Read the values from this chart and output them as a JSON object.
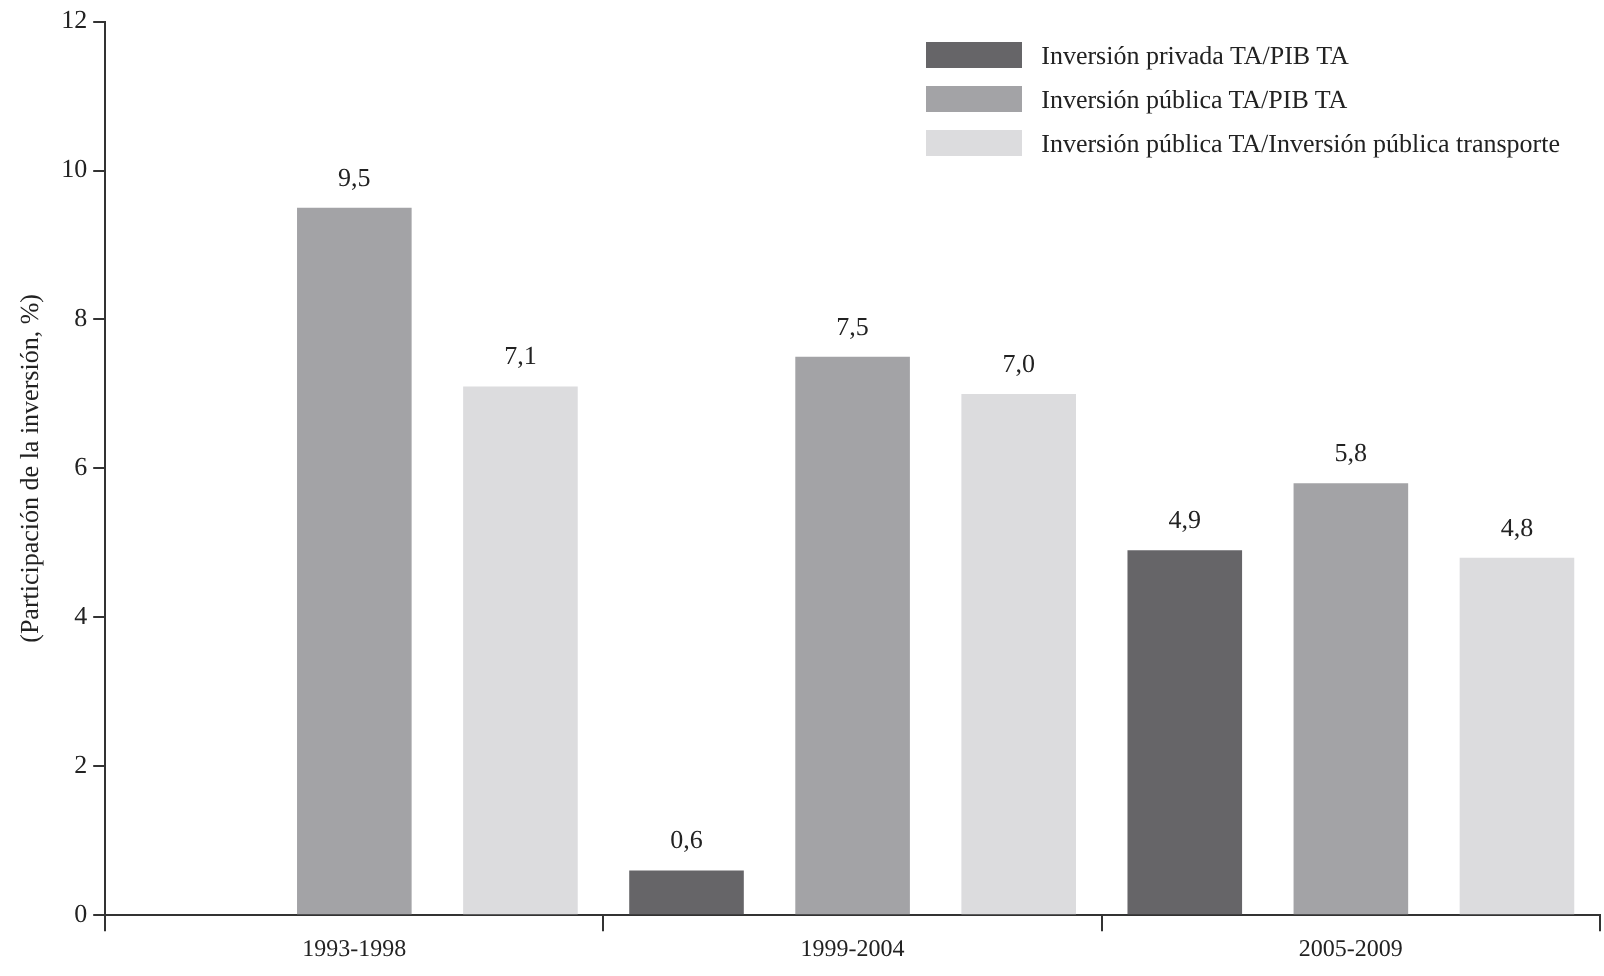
{
  "chart_data": {
    "type": "bar",
    "ylabel": "(Participación de la inversión, %)",
    "categories": [
      "1993-1998",
      "1999-2004",
      "2005-2009"
    ],
    "series": [
      {
        "name": "Inversión privada TA/PIB TA",
        "color": "#666568",
        "values": [
          null,
          0.6,
          4.9
        ],
        "value_labels": [
          null,
          "0,6",
          "4,9"
        ]
      },
      {
        "name": "Inversión pública TA/PIB TA",
        "color": "#a3a3a6",
        "values": [
          9.5,
          7.5,
          5.8
        ],
        "value_labels": [
          "9,5",
          "7,5",
          "5,8"
        ]
      },
      {
        "name": "Inversión pública TA/Inversión pública transporte",
        "color": "#dcdcde",
        "values": [
          7.1,
          7.0,
          4.8
        ],
        "value_labels": [
          "7,1",
          "7,0",
          "4,8"
        ]
      }
    ],
    "ylim": [
      0,
      12
    ],
    "yticks": [
      0,
      2,
      4,
      6,
      8,
      10,
      12
    ],
    "grid": false,
    "legend": "top right"
  }
}
